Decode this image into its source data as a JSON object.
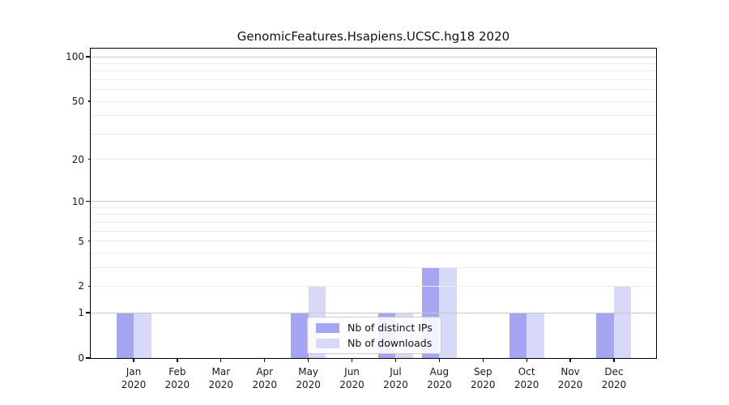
{
  "title": "GenomicFeatures.Hsapiens.UCSC.hg18 2020",
  "chart_data": {
    "type": "bar",
    "title": "GenomicFeatures.Hsapiens.UCSC.hg18 2020",
    "year": "2020",
    "months": [
      "Jan",
      "Feb",
      "Mar",
      "Apr",
      "May",
      "Jun",
      "Jul",
      "Aug",
      "Sep",
      "Oct",
      "Nov",
      "Dec"
    ],
    "series": [
      {
        "name": "Nb of distinct IPs",
        "color": "#a5a5f3",
        "values": [
          1,
          0,
          0,
          0,
          1,
          0,
          1,
          3,
          0,
          1,
          0,
          1
        ]
      },
      {
        "name": "Nb of downloads",
        "color": "#d8d8f9",
        "values": [
          1,
          0,
          0,
          0,
          2,
          0,
          1,
          3,
          0,
          1,
          0,
          2
        ]
      }
    ],
    "xlabel": "",
    "ylabel": "",
    "yscale": "log1p",
    "ylim": [
      0,
      113
    ],
    "yticks": [
      0,
      1,
      2,
      5,
      10,
      20,
      50,
      100
    ],
    "minor_yticks": [
      3,
      4,
      6,
      7,
      8,
      9,
      30,
      40,
      60,
      70,
      80,
      90
    ],
    "major_gridline_values": [
      1,
      10,
      100
    ],
    "grid": "horizontal, drawn above bars",
    "legend_position": "inside lower-center",
    "colors": {
      "major_grid": "#c6c6c6",
      "minor_grid": "#ececec",
      "axis": "#000000",
      "text": "#1a1a1a"
    }
  }
}
